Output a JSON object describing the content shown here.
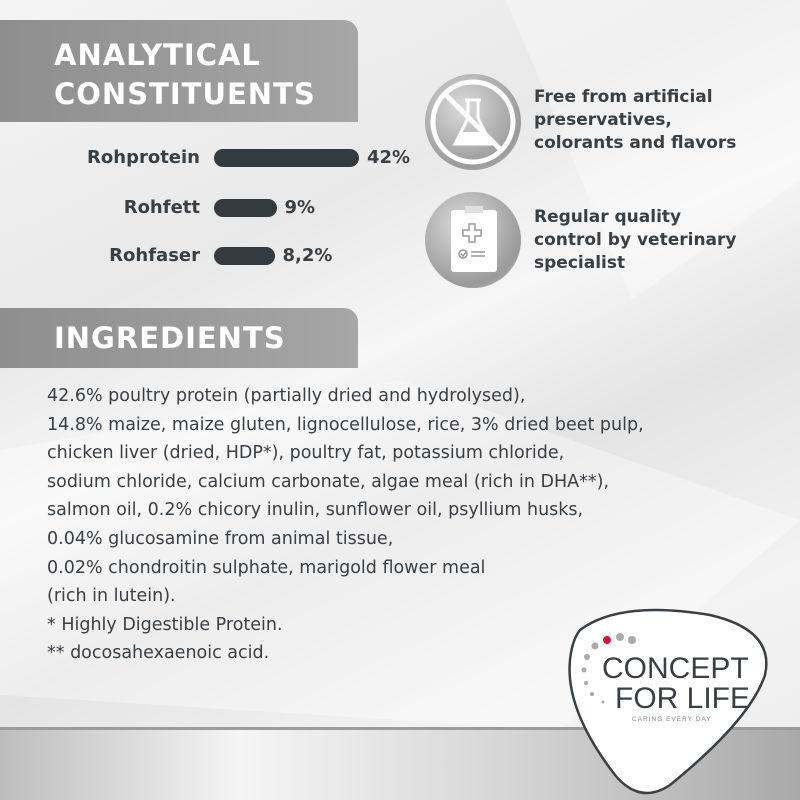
{
  "analytical": {
    "title_line1": "ANALYTICAL",
    "title_line2": "CONSTITUENTS",
    "items": [
      {
        "label": "Rohprotein",
        "value": 42,
        "display": "42%"
      },
      {
        "label": "Rohfett",
        "value": 9,
        "display": "9%"
      },
      {
        "label": "Rohfaser",
        "value": 8.2,
        "display": "8,2%"
      }
    ]
  },
  "features": [
    {
      "icon": "no-chemicals-flask-icon",
      "lines": [
        "Free from artificial",
        "preservatives,",
        "colorants and flavors"
      ]
    },
    {
      "icon": "clipboard-medical-check-icon",
      "lines": [
        "Regular quality",
        "control by veterinary",
        "specialist"
      ]
    }
  ],
  "ingredients": {
    "title": "INGREDIENTS",
    "lines": [
      "42.6% poultry protein (partially dried and hydrolysed),",
      "14.8% maize, maize gluten, lignocellulose, rice, 3% dried beet pulp,",
      "chicken liver (dried, HDP*), poultry fat, potassium chloride,",
      "sodium chloride, calcium carbonate, algae meal (rich in DHA**),",
      "salmon oil, 0.2% chicory inulin, sunflower oil, psyllium husks,",
      "0.04% glucosamine from animal tissue,",
      "0.02% chondroitin sulphate, marigold flower meal",
      "(rich in lutein).",
      "* Highly Digestible Protein.",
      "** docosahexaenoic acid."
    ]
  },
  "logo": {
    "line1": "CONCEPT",
    "line2": "FOR LIFE",
    "tagline": "CARING EVERY DAY"
  },
  "colors": {
    "bar": "#333a40",
    "banner": "#9a9a9a",
    "logo_accent": "#d4163c",
    "text": "#3a3f44"
  }
}
